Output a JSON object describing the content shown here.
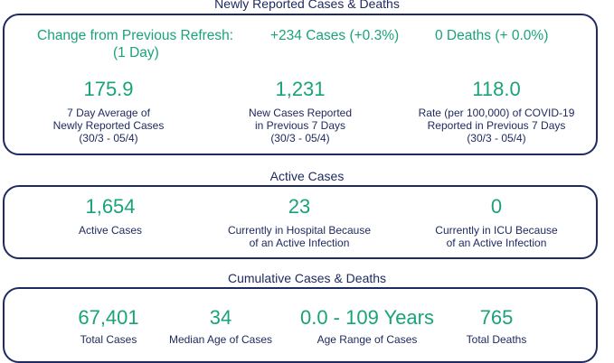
{
  "newly_reported": {
    "title": "Newly Reported Cases & Deaths",
    "change_label": "Change from Previous Refresh:",
    "change_period": "(1 Day)",
    "cases_change": "+234 Cases (+0.3%)",
    "deaths_change": "0 Deaths (+ 0.0%)",
    "metrics": [
      {
        "value": "175.9",
        "label_line1": "7 Day Average of",
        "label_line2": "Newly Reported Cases",
        "label_line3": "(30/3 - 05/4)"
      },
      {
        "value": "1,231",
        "label_line1": "New Cases Reported",
        "label_line2": "in Previous 7 Days",
        "label_line3": "(30/3 - 05/4)"
      },
      {
        "value": "118.0",
        "label_line1": "Rate (per 100,000) of COVID-19",
        "label_line2": "Reported in Previous 7 Days",
        "label_line3": "(30/3 - 05/4)"
      }
    ]
  },
  "active": {
    "title": "Active Cases",
    "metrics": [
      {
        "value": "1,654",
        "label_line1": "Active Cases",
        "label_line2": ""
      },
      {
        "value": "23",
        "label_line1": "Currently in Hospital Because",
        "label_line2": "of an Active Infection"
      },
      {
        "value": "0",
        "label_line1": "Currently in ICU Because",
        "label_line2": "of an Active Infection"
      }
    ]
  },
  "cumulative": {
    "title": "Cumulative Cases & Deaths",
    "metrics": [
      {
        "value": "67,401",
        "label": "Total Cases"
      },
      {
        "value": "34",
        "label": "Median Age of Cases"
      },
      {
        "value": "0.0 - 109 Years",
        "label": "Age Range of Cases"
      },
      {
        "value": "765",
        "label": "Total Deaths"
      }
    ]
  },
  "colors": {
    "accent": "#1aa37a",
    "text": "#1f2a60",
    "border": "#1f2a60"
  }
}
